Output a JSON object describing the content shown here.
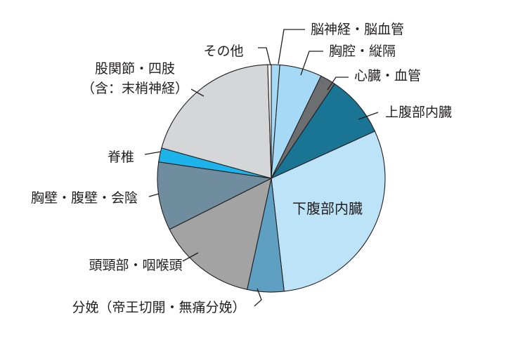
{
  "chart_data": {
    "type": "pie",
    "start_angle_deg": 0,
    "direction": "clockwise",
    "slices": [
      {
        "label": "脳神経・脳血管",
        "value": 1.2,
        "color": "#a6d9f5"
      },
      {
        "label": "胸腔・縦隔",
        "value": 6.0,
        "color": "#a6d9f5"
      },
      {
        "label": "心臓・血管",
        "value": 2.2,
        "color": "#6d6e70"
      },
      {
        "label": "上腹部内臓",
        "value": 8.8,
        "color": "#1a7595"
      },
      {
        "label": "下腹部内臓",
        "value": 30.0,
        "color": "#bde3f8"
      },
      {
        "label": "分娩（帝王切開・無痛分娩）",
        "value": 5.2,
        "color": "#5e9fc2"
      },
      {
        "label": "頭頸部・咽喉頭",
        "value": 14.2,
        "color": "#a3a3a3"
      },
      {
        "label": "胸壁・腹壁・会陰",
        "value": 9.7,
        "color": "#6f8d9e"
      },
      {
        "label": "脊椎",
        "value": 2.0,
        "color": "#1cb4ea"
      },
      {
        "label": "股関節・四肢\n（含：末梢神経）",
        "value": 20.2,
        "color": "#d5d6d8"
      },
      {
        "label": "その他",
        "value": 0.5,
        "color": "#f2f2f2"
      }
    ]
  }
}
